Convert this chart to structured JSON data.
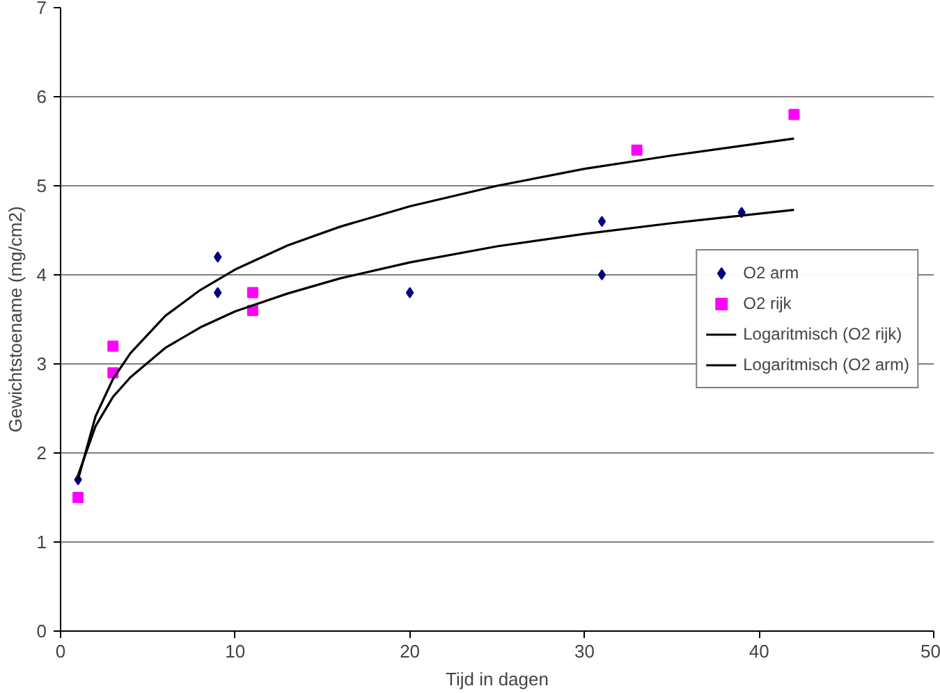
{
  "chart_data": {
    "type": "scatter",
    "xlabel": "Tijd in dagen",
    "ylabel": "Gewichtstoename (mg/cm2)",
    "xlim": [
      0,
      50
    ],
    "ylim": [
      0,
      7
    ],
    "xticks": [
      0,
      10,
      20,
      30,
      40,
      50
    ],
    "yticks": [
      0,
      1,
      2,
      3,
      4,
      5,
      6,
      7
    ],
    "grid": "y",
    "legend": "right",
    "series": [
      {
        "name": "O2 arm",
        "marker": "diamond",
        "color": "#000080",
        "x": [
          1,
          9,
          9,
          20,
          31,
          31,
          39
        ],
        "values": [
          1.7,
          4.2,
          3.8,
          3.8,
          4.6,
          4.0,
          4.7
        ]
      },
      {
        "name": "O2 rijk",
        "marker": "square",
        "color": "#ff00ff",
        "x": [
          1,
          3,
          3,
          11,
          11,
          33,
          42
        ],
        "values": [
          1.5,
          3.2,
          2.9,
          3.8,
          3.6,
          5.4,
          5.8
        ]
      },
      {
        "name": "Logaritmisch (O2 rijk)",
        "type": "line",
        "color": "#000000",
        "x": [
          1,
          2,
          3,
          4,
          6,
          8,
          10,
          13,
          16,
          20,
          25,
          30,
          35,
          42
        ],
        "values": [
          1.7,
          2.41,
          2.83,
          3.12,
          3.54,
          3.83,
          4.06,
          4.33,
          4.54,
          4.77,
          5.0,
          5.19,
          5.34,
          5.53
        ]
      },
      {
        "name": "Logaritmisch (O2 arm)",
        "type": "line",
        "color": "#000000",
        "x": [
          1,
          2,
          3,
          4,
          6,
          8,
          10,
          13,
          16,
          20,
          25,
          30,
          35,
          42
        ],
        "values": [
          1.75,
          2.3,
          2.63,
          2.85,
          3.18,
          3.41,
          3.59,
          3.79,
          3.96,
          4.14,
          4.32,
          4.46,
          4.58,
          4.73
        ]
      }
    ]
  }
}
